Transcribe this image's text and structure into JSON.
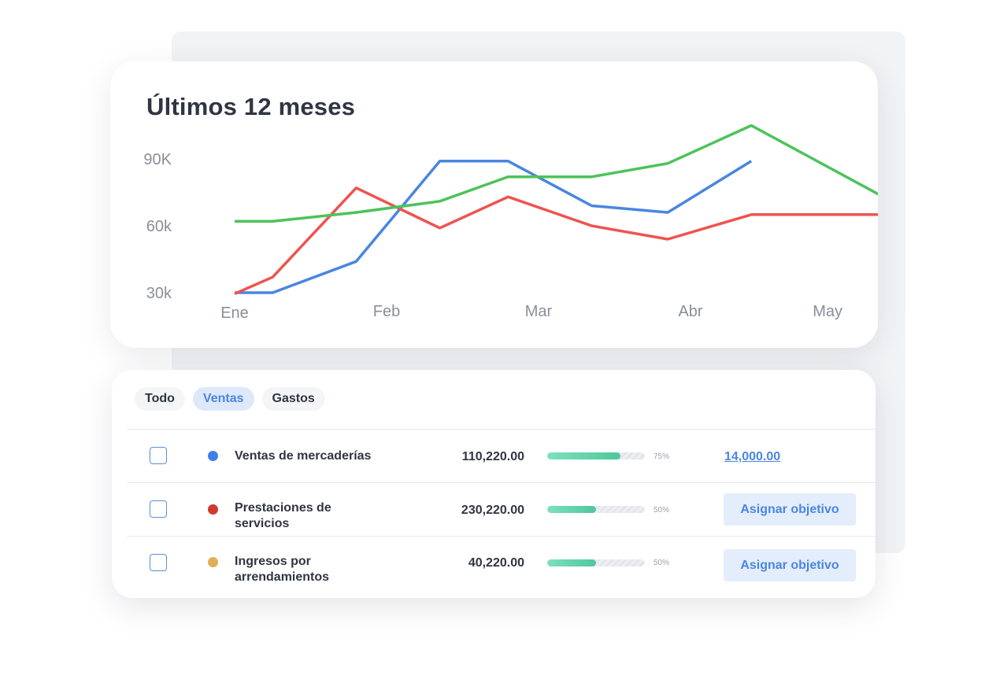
{
  "chart_data": {
    "type": "line",
    "title": "Últimos 12 meses",
    "x_ticks": [
      "Ene",
      "Feb",
      "Mar",
      "Abr",
      "May"
    ],
    "y_ticks": [
      "90K",
      "60k",
      "30k"
    ],
    "y_tick_values": [
      90000,
      60000,
      30000
    ],
    "ylim": [
      30000,
      90000
    ],
    "x": [
      0,
      0.25,
      0.8,
      1.35,
      1.8,
      2.35,
      2.85,
      3.4,
      4.05,
      4.35
    ],
    "grid": false,
    "legend": "none",
    "series": [
      {
        "color": "#4a86e0",
        "values": [
          30000,
          30000,
          44000,
          89000,
          89000,
          69000,
          66000,
          89000,
          null,
          null
        ]
      },
      {
        "color": "#ef5350",
        "values": [
          29500,
          37000,
          77000,
          59000,
          73000,
          60000,
          54000,
          65000,
          65000,
          65000
        ]
      },
      {
        "color": "#4cc35a",
        "values": [
          62000,
          62000,
          66000,
          71000,
          82000,
          82000,
          88000,
          105000,
          null,
          70000
        ]
      }
    ]
  },
  "tabs": [
    {
      "label": "Todo",
      "active": false
    },
    {
      "label": "Ventas",
      "active": true
    },
    {
      "label": "Gastos",
      "active": false
    }
  ],
  "rows": [
    {
      "label": "Ventas de mercaderías",
      "color": "#3f7fe6",
      "amount": "110,220.00",
      "progress": 0.75,
      "progress_text": "75%",
      "goal_link": "14,000.00",
      "button": ""
    },
    {
      "label": "Prestaciones de servicios",
      "color": "#d13a2f",
      "amount": "230,220.00",
      "progress": 0.5,
      "progress_text": "50%",
      "goal_link": "",
      "button": "Asignar objetivo"
    },
    {
      "label": "Ingresos por arrendamientos",
      "color": "#e2ae55",
      "amount": "40,220.00",
      "progress": 0.5,
      "progress_text": "50%",
      "goal_link": "",
      "button": "Asignar objetivo"
    }
  ]
}
